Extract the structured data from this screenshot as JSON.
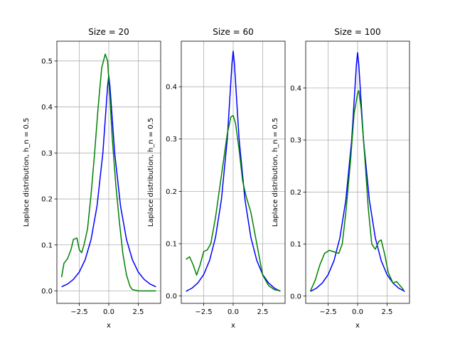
{
  "chart_data": [
    {
      "type": "line",
      "title": "Size = 20",
      "xlabel": "x",
      "ylabel": "Laplace distribution, h_n = 0.5",
      "xlim": [
        -4.4,
        4.4
      ],
      "ylim": [
        -0.027,
        0.543
      ],
      "xticks": [
        -2.5,
        0.0,
        2.5
      ],
      "xtick_labels": [
        "−2.5",
        "0.0",
        "2.5"
      ],
      "yticks": [
        0.0,
        0.1,
        0.2,
        0.3,
        0.4,
        0.5
      ],
      "ytick_labels": [
        "0.0",
        "0.1",
        "0.2",
        "0.3",
        "0.4",
        "0.5"
      ],
      "grid": true,
      "series": [
        {
          "color": "#0000ff",
          "x": [
            -4.0,
            -3.5,
            -3.0,
            -2.5,
            -2.0,
            -1.5,
            -1.0,
            -0.5,
            -0.1,
            0.0,
            0.1,
            0.5,
            1.0,
            1.5,
            2.0,
            2.5,
            3.0,
            3.5,
            4.0
          ],
          "y": [
            0.009,
            0.015,
            0.025,
            0.041,
            0.068,
            0.112,
            0.184,
            0.3,
            0.445,
            0.468,
            0.445,
            0.3,
            0.184,
            0.112,
            0.068,
            0.041,
            0.025,
            0.015,
            0.009
          ]
        },
        {
          "color": "#008000",
          "x": [
            -4.0,
            -3.8,
            -3.5,
            -3.2,
            -3.0,
            -2.7,
            -2.5,
            -2.3,
            -2.1,
            -1.8,
            -1.5,
            -1.2,
            -0.9,
            -0.6,
            -0.3,
            -0.1,
            0.1,
            0.3,
            0.6,
            0.9,
            1.2,
            1.5,
            1.8,
            2.0,
            2.5,
            3.0,
            4.0
          ],
          "y": [
            0.03,
            0.06,
            0.07,
            0.09,
            0.112,
            0.115,
            0.09,
            0.083,
            0.1,
            0.135,
            0.21,
            0.3,
            0.4,
            0.485,
            0.515,
            0.5,
            0.42,
            0.33,
            0.23,
            0.15,
            0.08,
            0.035,
            0.01,
            0.003,
            0.0,
            0.0,
            0.0
          ]
        }
      ]
    },
    {
      "type": "line",
      "title": "Size = 60",
      "xlabel": "x",
      "ylabel": "Laplace distribution, h_n = 0.5",
      "xlim": [
        -4.4,
        4.4
      ],
      "ylim": [
        -0.014,
        0.487
      ],
      "xticks": [
        -2.5,
        0.0,
        2.5
      ],
      "xtick_labels": [
        "−2.5",
        "0.0",
        "2.5"
      ],
      "yticks": [
        0.0,
        0.1,
        0.2,
        0.3,
        0.4
      ],
      "ytick_labels": [
        "0.0",
        "0.1",
        "0.2",
        "0.3",
        "0.4"
      ],
      "grid": true,
      "series": [
        {
          "color": "#0000ff",
          "x": [
            -4.0,
            -3.5,
            -3.0,
            -2.5,
            -2.0,
            -1.5,
            -1.0,
            -0.5,
            -0.1,
            0.0,
            0.1,
            0.5,
            1.0,
            1.5,
            2.0,
            2.5,
            3.0,
            3.5,
            4.0
          ],
          "y": [
            0.009,
            0.015,
            0.025,
            0.041,
            0.068,
            0.112,
            0.184,
            0.3,
            0.445,
            0.468,
            0.445,
            0.3,
            0.184,
            0.112,
            0.068,
            0.041,
            0.025,
            0.015,
            0.009
          ]
        },
        {
          "color": "#008000",
          "x": [
            -4.0,
            -3.7,
            -3.4,
            -3.1,
            -2.8,
            -2.5,
            -2.2,
            -1.9,
            -1.5,
            -1.0,
            -0.5,
            -0.2,
            0.0,
            0.2,
            0.5,
            0.8,
            1.1,
            1.5,
            2.0,
            2.5,
            3.0,
            3.5,
            4.0
          ],
          "y": [
            0.07,
            0.075,
            0.06,
            0.04,
            0.06,
            0.085,
            0.088,
            0.1,
            0.15,
            0.23,
            0.31,
            0.342,
            0.345,
            0.33,
            0.28,
            0.22,
            0.19,
            0.16,
            0.1,
            0.04,
            0.02,
            0.012,
            0.01
          ]
        }
      ]
    },
    {
      "type": "line",
      "title": "Size = 100",
      "xlabel": "x",
      "ylabel": "Laplace distribution, h_n = 0.5",
      "xlim": [
        -4.4,
        4.4
      ],
      "ylim": [
        -0.014,
        0.49
      ],
      "xticks": [
        -2.5,
        0.0,
        2.5
      ],
      "xtick_labels": [
        "−2.5",
        "0.0",
        "2.5"
      ],
      "yticks": [
        0.0,
        0.1,
        0.2,
        0.3,
        0.4
      ],
      "ytick_labels": [
        "0.0",
        "0.1",
        "0.2",
        "0.3",
        "0.4"
      ],
      "grid": true,
      "series": [
        {
          "color": "#0000ff",
          "x": [
            -4.0,
            -3.5,
            -3.0,
            -2.5,
            -2.0,
            -1.5,
            -1.0,
            -0.5,
            -0.1,
            0.0,
            0.1,
            0.5,
            1.0,
            1.5,
            2.0,
            2.5,
            3.0,
            3.5,
            4.0
          ],
          "y": [
            0.009,
            0.015,
            0.025,
            0.041,
            0.068,
            0.112,
            0.184,
            0.3,
            0.445,
            0.468,
            0.445,
            0.3,
            0.184,
            0.112,
            0.068,
            0.041,
            0.025,
            0.015,
            0.009
          ]
        },
        {
          "color": "#008000",
          "x": [
            -4.0,
            -3.6,
            -3.2,
            -2.8,
            -2.4,
            -2.0,
            -1.6,
            -1.3,
            -1.0,
            -0.6,
            -0.3,
            0.0,
            0.1,
            0.3,
            0.6,
            0.9,
            1.2,
            1.5,
            1.8,
            2.0,
            2.3,
            2.6,
            3.0,
            3.3,
            3.6,
            3.9
          ],
          "y": [
            0.01,
            0.03,
            0.06,
            0.082,
            0.088,
            0.085,
            0.082,
            0.1,
            0.16,
            0.26,
            0.35,
            0.39,
            0.395,
            0.36,
            0.27,
            0.17,
            0.1,
            0.09,
            0.105,
            0.108,
            0.08,
            0.045,
            0.025,
            0.028,
            0.02,
            0.012
          ]
        }
      ]
    }
  ]
}
